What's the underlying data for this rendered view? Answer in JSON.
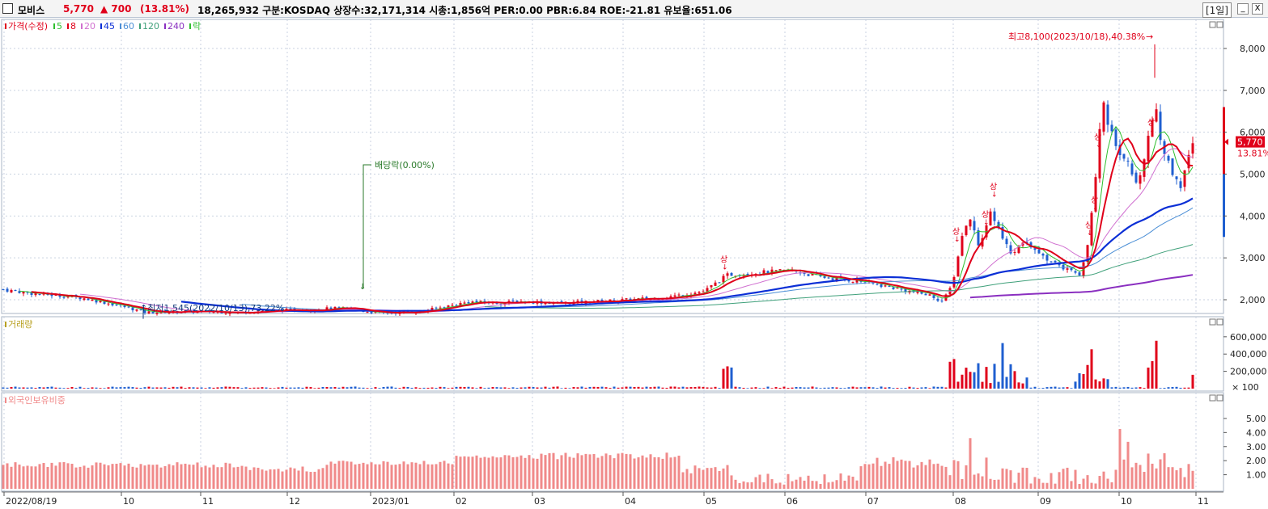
{
  "header": {
    "stock_name": "모비스",
    "price": "5,770",
    "change_arrow": "▲",
    "change": "700",
    "change_rate": "(13.81%)",
    "info": "18,265,932  구분:KOSDAQ 상장수:32,171,314 시총:1,856억 PER:0.00 PBR:6.84 ROE:-21.81 유보율:651.06",
    "period": "[1일]",
    "window_btn_restore": "_",
    "window_btn_close": "X"
  },
  "colors": {
    "up": "#e0001a",
    "down": "#1f5fd0",
    "ma5": "#2fbf2f",
    "ma8": "#e0001a",
    "ma20": "#d070d0",
    "ma45": "#0b2fd6",
    "ma60": "#4c8fd6",
    "ma120": "#3fa07a",
    "ma240": "#8a2fc0",
    "volume_legend": "#b8a020",
    "foreign": "#f08a8a"
  },
  "price_panel": {
    "legend": [
      {
        "label": "가격(수정)",
        "color": "#e0001a"
      },
      {
        "label": "5",
        "color": "#2fbf2f"
      },
      {
        "label": "8",
        "color": "#e0001a"
      },
      {
        "label": "20",
        "color": "#d070d0"
      },
      {
        "label": "45",
        "color": "#0b2fd6"
      },
      {
        "label": "60",
        "color": "#4c8fd6"
      },
      {
        "label": "120",
        "color": "#3fa07a"
      },
      {
        "label": "240",
        "color": "#8a2fc0"
      },
      {
        "label": "락",
        "color": "#2fbf2f"
      }
    ],
    "y_ticks": [
      "8,000",
      "7,000",
      "6,000",
      "5,000",
      "4,000",
      "3,000",
      "2,000"
    ],
    "current_price_label": "5,770",
    "current_rate_label": "13.81%",
    "high_annotation": "최고8,100(2023/10/18),40.38%",
    "low_annotation": "최저1,545(2022/10/13),73.22%",
    "dividend_annotation": "배당락(0.00%)",
    "limit_up_marker": "상"
  },
  "volume_panel": {
    "legend": "거래량",
    "y_ticks": [
      "600,000",
      "400,000",
      "200,000"
    ],
    "unit": "× 100"
  },
  "foreign_panel": {
    "legend": "외국인보유비중",
    "y_ticks": [
      "5.00",
      "4.00",
      "3.00",
      "2.00",
      "1.00"
    ]
  },
  "x_axis": {
    "labels": [
      "2022/08/19",
      "10",
      "11",
      "12",
      "2023/01",
      "02",
      "03",
      "04",
      "05",
      "06",
      "07",
      "08",
      "09",
      "10",
      "11"
    ]
  },
  "chart_data": {
    "type": "candlestick",
    "x_range": [
      "2022/08/19",
      "2023/10/31"
    ],
    "price_ylim": [
      1545,
      8100
    ],
    "price_series": {
      "dates": [
        "2022/08",
        "2022/09",
        "2022/10",
        "2022/11",
        "2022/12",
        "2023/01",
        "2023/02",
        "2023/03",
        "2023/04",
        "2023/05",
        "2023/06",
        "2023/07",
        "2023/08",
        "2023/09",
        "2023/10",
        "2023/10/31"
      ],
      "close": [
        2150,
        2000,
        1700,
        1750,
        1800,
        1700,
        1950,
        1900,
        2050,
        2500,
        2550,
        2250,
        3300,
        2700,
        5400,
        5770
      ]
    },
    "highs": [
      {
        "date": "2023/10/18",
        "value": 8100
      }
    ],
    "lows": [
      {
        "date": "2022/10/13",
        "value": 1545
      }
    ],
    "volume_ylim": [
      0,
      700000
    ],
    "foreign_ratio_ylim": [
      0,
      6
    ]
  }
}
